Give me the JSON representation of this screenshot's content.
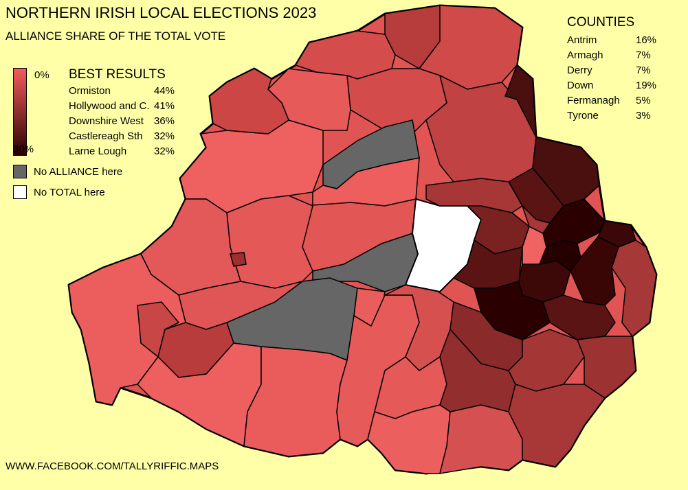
{
  "title": "NORTHERN IRISH LOCAL ELECTIONS 2023",
  "subtitle": "ALLIANCE SHARE OF THE TOTAL VOTE",
  "scale": {
    "min_label": "0%",
    "max_label": "30%",
    "min_color": "#f25c5c",
    "max_color": "#2a0000"
  },
  "best_results": {
    "heading": "BEST RESULTS",
    "rows": [
      {
        "name": "Ormiston",
        "value": "44%"
      },
      {
        "name": "Hollywood and C.",
        "value": "41%"
      },
      {
        "name": "Downshire West",
        "value": "36%"
      },
      {
        "name": "Castlereagh Sth",
        "value": "32%"
      },
      {
        "name": "Larne Lough",
        "value": "32%"
      }
    ]
  },
  "no_alliance": {
    "label": "No ALLIANCE here",
    "color": "#666666"
  },
  "no_total": {
    "label": "No TOTAL here",
    "color": "#ffffff"
  },
  "counties": {
    "heading": "COUNTIES",
    "rows": [
      {
        "name": "Antrim",
        "value": "16%"
      },
      {
        "name": "Armagh",
        "value": "7%"
      },
      {
        "name": "Derry",
        "value": "7%"
      },
      {
        "name": "Down",
        "value": "19%"
      },
      {
        "name": "Fermanagh",
        "value": "5%"
      },
      {
        "name": "Tyrone",
        "value": "3%"
      }
    ]
  },
  "footer": "WWW.FACEBOOK.COM/TALLYRIFFIC.MAPS"
}
